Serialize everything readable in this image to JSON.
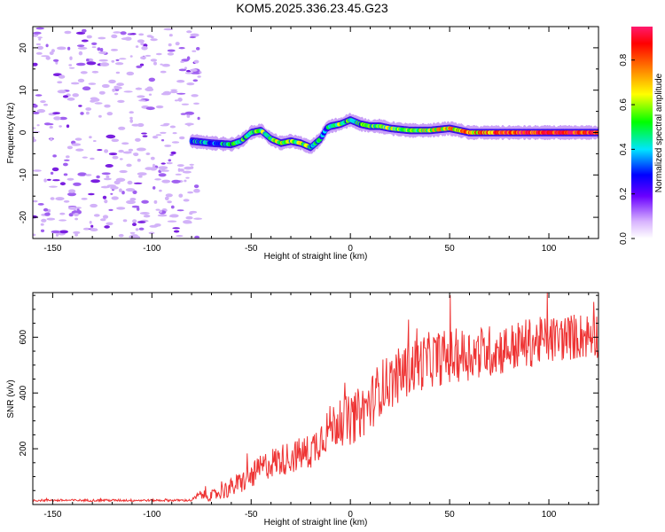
{
  "title": "KOM5.2025.336.23.45.G23",
  "chart_data": [
    {
      "type": "heatmap",
      "xlabel": "Height of straight line (km)",
      "ylabel": "Frequency (Hz)",
      "xlim": [
        -160,
        125
      ],
      "ylim": [
        -25,
        25
      ],
      "x_ticks": [
        -150,
        -100,
        -50,
        0,
        50,
        100
      ],
      "y_ticks": [
        -20,
        -10,
        0,
        10,
        20
      ],
      "colorbar": {
        "label": "Normalized spectral amplitude",
        "range": [
          0,
          0.95
        ],
        "ticks": [
          "0.0",
          "0.2",
          "0.4",
          "0.6",
          "0.8"
        ],
        "tick_values": [
          0.0,
          0.2,
          0.4,
          0.6,
          0.8
        ]
      },
      "noise_region_x": [
        -160,
        -80
      ],
      "ridge": {
        "x": [
          -80,
          -70,
          -60,
          -55,
          -50,
          -45,
          -40,
          -35,
          -30,
          -25,
          -20,
          -15,
          -12,
          -10,
          -5,
          0,
          5,
          10,
          15,
          20,
          30,
          40,
          50,
          60,
          70,
          80,
          90,
          100,
          110,
          125
        ],
        "freq": [
          -2,
          -2.5,
          -2.8,
          -2,
          0,
          0.5,
          -1.5,
          -2.5,
          -2,
          -2.5,
          -3.5,
          -1.5,
          1,
          1.5,
          2,
          3,
          2,
          1.5,
          1.5,
          1,
          0.5,
          0.5,
          1,
          0,
          0,
          0,
          0,
          0,
          0,
          0
        ],
        "amplitude": [
          0.3,
          0.35,
          0.4,
          0.45,
          0.45,
          0.5,
          0.5,
          0.55,
          0.5,
          0.55,
          0.45,
          0.35,
          0.4,
          0.45,
          0.5,
          0.4,
          0.45,
          0.5,
          0.5,
          0.55,
          0.55,
          0.6,
          0.65,
          0.7,
          0.75,
          0.8,
          0.85,
          0.85,
          0.9,
          0.9
        ]
      }
    },
    {
      "type": "line",
      "xlabel": "Height of straight line (km)",
      "ylabel": "SNR (v/v)",
      "xlim": [
        -160,
        125
      ],
      "ylim": [
        0,
        760
      ],
      "x_ticks": [
        -150,
        -100,
        -50,
        0,
        50,
        100
      ],
      "y_ticks": [
        200,
        400,
        600
      ],
      "color": "#ee3333",
      "series": [
        {
          "name": "SNR",
          "x": [
            -160,
            -80,
            -76,
            -70,
            -60,
            -50,
            -45,
            -40,
            -30,
            -20,
            -15,
            -10,
            -5,
            0,
            5,
            10,
            15,
            20,
            30,
            40,
            50,
            60,
            70,
            80,
            90,
            100,
            110,
            125
          ],
          "mean": [
            15,
            15,
            35,
            30,
            60,
            100,
            130,
            150,
            170,
            190,
            240,
            280,
            300,
            300,
            330,
            360,
            420,
            440,
            490,
            520,
            530,
            540,
            550,
            560,
            580,
            590,
            600,
            610
          ],
          "noise_amplitude": [
            4,
            4,
            15,
            20,
            35,
            45,
            50,
            55,
            60,
            65,
            75,
            80,
            90,
            90,
            95,
            100,
            100,
            100,
            100,
            100,
            100,
            95,
            95,
            90,
            90,
            85,
            85,
            85
          ]
        }
      ]
    }
  ]
}
